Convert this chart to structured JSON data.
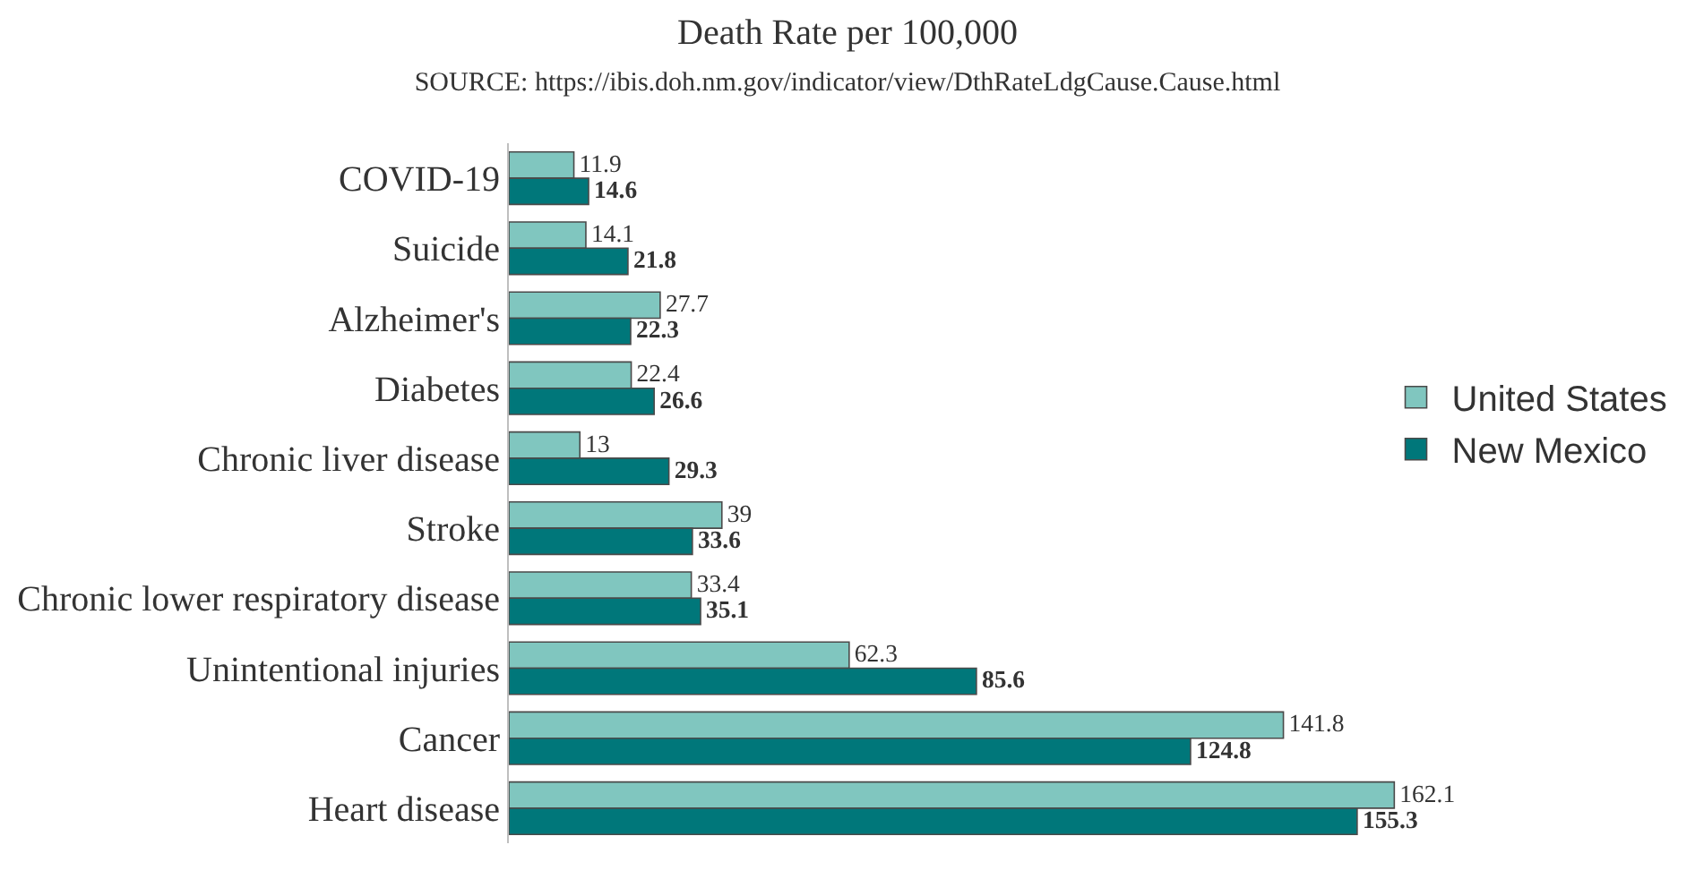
{
  "chart_data": {
    "type": "bar",
    "orientation": "horizontal",
    "title": "Death Rate per 100,000",
    "subtitle": "SOURCE: https://ibis.doh.nm.gov/indicator/view/DthRateLdgCause.Cause.html",
    "categories": [
      "COVID-19",
      "Suicide",
      "Alzheimer's",
      "Diabetes",
      "Chronic liver disease",
      "Stroke",
      "Chronic lower respiratory disease",
      "Unintentional injuries",
      "Cancer",
      "Heart disease"
    ],
    "series": [
      {
        "name": "United States",
        "color": "#80c6bf",
        "values": [
          11.9,
          14.1,
          27.7,
          22.4,
          13,
          39,
          33.4,
          62.3,
          141.8,
          162.1
        ]
      },
      {
        "name": "New Mexico",
        "color": "#00777a",
        "values": [
          14.6,
          21.8,
          22.3,
          26.6,
          29.3,
          33.6,
          35.1,
          85.6,
          124.8,
          155.3
        ]
      }
    ],
    "data_labels": true,
    "legend": "right"
  }
}
